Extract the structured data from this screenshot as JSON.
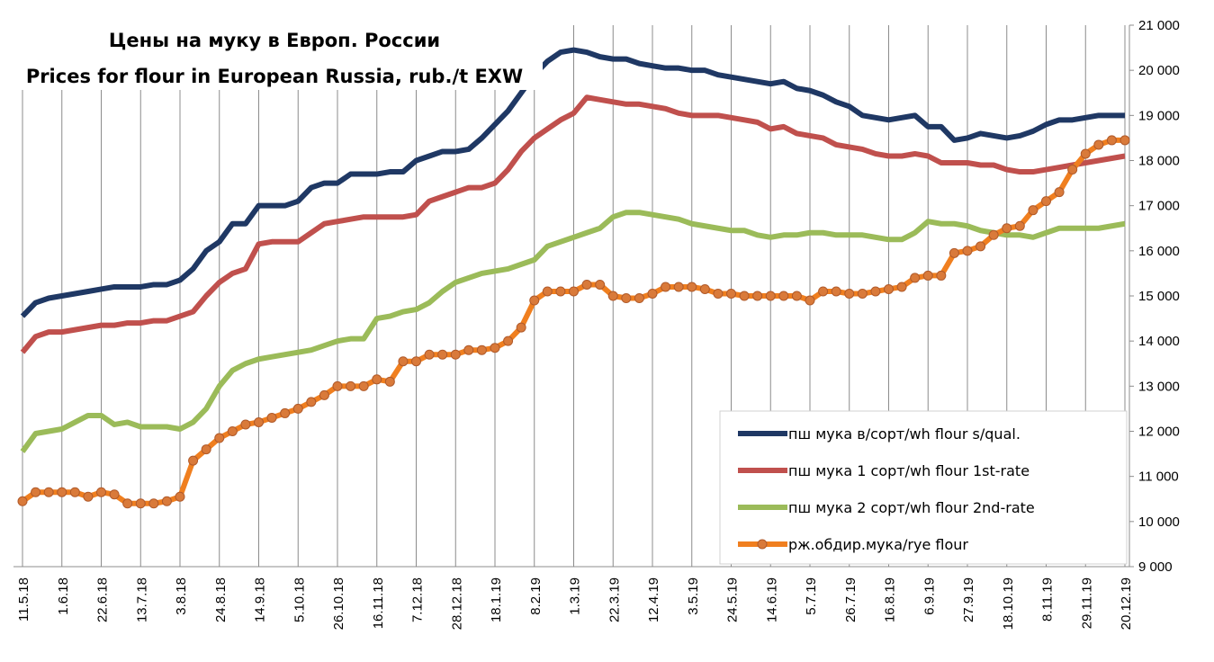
{
  "chart_data": {
    "type": "line",
    "title": "Цены на муку в Европ. России",
    "subtitle": "Prices for flour in European Russia, rub./t EXW",
    "categories": [
      "11.5.18",
      null,
      null,
      "1.6.18",
      null,
      null,
      "22.6.18",
      null,
      null,
      "13.7.18",
      null,
      null,
      "3.8.18",
      null,
      null,
      "24.8.18",
      null,
      null,
      "14.9.18",
      null,
      null,
      "5.10.18",
      null,
      null,
      "26.10.18",
      null,
      null,
      "16.11.18",
      null,
      null,
      "7.12.18",
      null,
      null,
      "28.12.18",
      null,
      null,
      "18.1.19",
      null,
      null,
      "8.2.19",
      null,
      null,
      "1.3.19",
      null,
      null,
      "22.3.19",
      null,
      null,
      "12.4.19",
      null,
      null,
      "3.5.19",
      null,
      null,
      "24.5.19",
      null,
      null,
      "14.6.19",
      null,
      null,
      "5.7.19",
      null,
      null,
      "26.7.19",
      null,
      null,
      "16.8.19",
      null,
      null,
      "6.9.19",
      null,
      null,
      "27.9.19",
      null,
      null,
      "18.10.19",
      null,
      null,
      "8.11.19",
      null,
      null,
      "29.11.19",
      null,
      null,
      "20.12.19"
    ],
    "ylim": [
      9000,
      21000
    ],
    "yticks": [
      {
        "value": 9000,
        "label": "9 000"
      },
      {
        "value": 10000,
        "label": "10 000"
      },
      {
        "value": 11000,
        "label": "11 000"
      },
      {
        "value": 12000,
        "label": "12 000"
      },
      {
        "value": 13000,
        "label": "13 000"
      },
      {
        "value": 14000,
        "label": "14 000"
      },
      {
        "value": 15000,
        "label": "15 000"
      },
      {
        "value": 16000,
        "label": "16 000"
      },
      {
        "value": 17000,
        "label": "17 000"
      },
      {
        "value": 18000,
        "label": "18 000"
      },
      {
        "value": 19000,
        "label": "19 000"
      },
      {
        "value": 20000,
        "label": "20 000"
      },
      {
        "value": 21000,
        "label": "21 000"
      }
    ],
    "grid": true,
    "legend": "lower right",
    "series": [
      {
        "name": "пш мука  в/сорт/wh  flour s/qual.",
        "color": "#1f3864",
        "markers": false,
        "values": [
          14550,
          14850,
          14950,
          15000,
          15050,
          15100,
          15150,
          15200,
          15200,
          15200,
          15250,
          15250,
          15350,
          15600,
          16000,
          16200,
          16600,
          16600,
          17000,
          17000,
          17000,
          17100,
          17400,
          17500,
          17500,
          17700,
          17700,
          17700,
          17750,
          17750,
          18000,
          18100,
          18200,
          18200,
          18250,
          18500,
          18800,
          19100,
          19500,
          19900,
          20200,
          20400,
          20450,
          20400,
          20300,
          20250,
          20250,
          20150,
          20100,
          20050,
          20050,
          20000,
          20000,
          19900,
          19850,
          19800,
          19750,
          19700,
          19750,
          19600,
          19550,
          19450,
          19300,
          19200,
          19000,
          18950,
          18900,
          18950,
          19000,
          18750,
          18750,
          18450,
          18500,
          18600,
          18550,
          18500,
          18550,
          18650,
          18800,
          18900,
          18900,
          18950,
          19000,
          19000,
          19000
        ]
      },
      {
        "name": "пш мука  1 сорт/wh  flour  1st-rate",
        "color": "#c0504d",
        "markers": false,
        "values": [
          13750,
          14100,
          14200,
          14200,
          14250,
          14300,
          14350,
          14350,
          14400,
          14400,
          14450,
          14450,
          14550,
          14650,
          15000,
          15300,
          15500,
          15600,
          16150,
          16200,
          16200,
          16200,
          16400,
          16600,
          16650,
          16700,
          16750,
          16750,
          16750,
          16750,
          16800,
          17100,
          17200,
          17300,
          17400,
          17400,
          17500,
          17800,
          18200,
          18500,
          18700,
          18900,
          19050,
          19400,
          19350,
          19300,
          19250,
          19250,
          19200,
          19150,
          19050,
          19000,
          19000,
          19000,
          18950,
          18900,
          18850,
          18700,
          18750,
          18600,
          18550,
          18500,
          18350,
          18300,
          18250,
          18150,
          18100,
          18100,
          18150,
          18100,
          17950,
          17950,
          17950,
          17900,
          17900,
          17800,
          17750,
          17750,
          17800,
          17850,
          17900,
          17950,
          18000,
          18050,
          18100
        ]
      },
      {
        "name": "пш мука  2 сорт/wh  flour  2nd-rate",
        "color": "#9bbb59",
        "markers": false,
        "values": [
          11550,
          11950,
          12000,
          12050,
          12200,
          12350,
          12350,
          12150,
          12200,
          12100,
          12100,
          12100,
          12050,
          12200,
          12500,
          13000,
          13350,
          13500,
          13600,
          13650,
          13700,
          13750,
          13800,
          13900,
          14000,
          14050,
          14050,
          14500,
          14550,
          14650,
          14700,
          14850,
          15100,
          15300,
          15400,
          15500,
          15550,
          15600,
          15700,
          15800,
          16100,
          16200,
          16300,
          16400,
          16500,
          16750,
          16850,
          16850,
          16800,
          16750,
          16700,
          16600,
          16550,
          16500,
          16450,
          16450,
          16350,
          16300,
          16350,
          16350,
          16400,
          16400,
          16350,
          16350,
          16350,
          16300,
          16250,
          16250,
          16400,
          16650,
          16600,
          16600,
          16550,
          16450,
          16400,
          16350,
          16350,
          16300,
          16400,
          16500,
          16500,
          16500,
          16500,
          16550,
          16600
        ]
      },
      {
        "name": "рж.обдир.мука/rye  flour",
        "color": "#f07f1f",
        "markers": true,
        "marker_color": "#d97a3a",
        "values": [
          10450,
          10650,
          10650,
          10650,
          10650,
          10550,
          10650,
          10600,
          10400,
          10400,
          10400,
          10450,
          10550,
          11350,
          11600,
          11850,
          12000,
          12150,
          12200,
          12300,
          12400,
          12500,
          12650,
          12800,
          13000,
          13000,
          13000,
          13150,
          13100,
          13550,
          13550,
          13700,
          13700,
          13700,
          13800,
          13800,
          13850,
          14000,
          14300,
          14900,
          15100,
          15100,
          15100,
          15250,
          15250,
          15000,
          14950,
          14950,
          15050,
          15200,
          15200,
          15200,
          15150,
          15050,
          15050,
          15000,
          15000,
          15000,
          15000,
          15000,
          14900,
          15100,
          15100,
          15050,
          15050,
          15100,
          15150,
          15200,
          15400,
          15450,
          15450,
          15950,
          16000,
          16100,
          16350,
          16500,
          16550,
          16900,
          17100,
          17300,
          17800,
          18150,
          18350,
          18450,
          18450
        ]
      }
    ]
  }
}
